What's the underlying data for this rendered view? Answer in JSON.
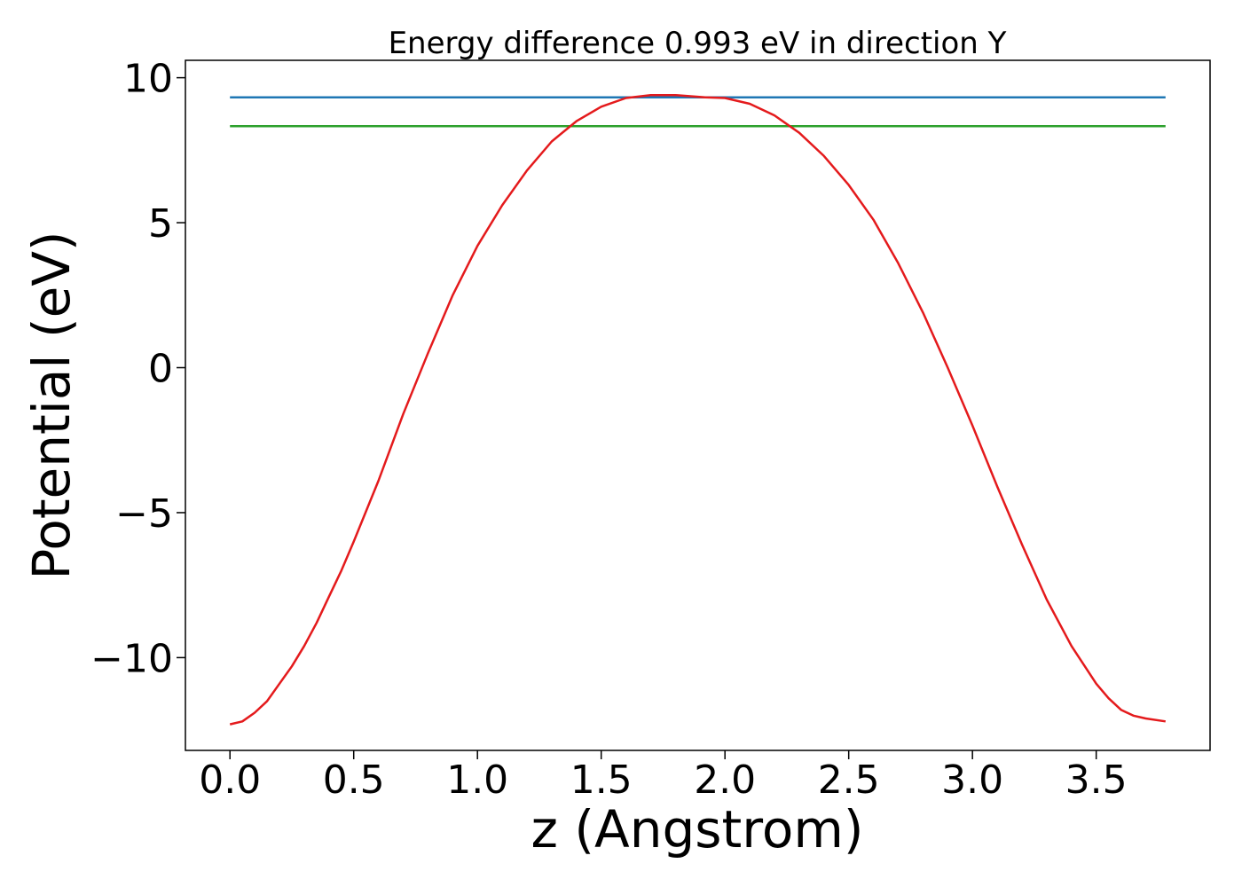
{
  "chart_data": {
    "type": "line",
    "title": "Energy difference 0.993 eV in direction Y",
    "xlabel": "z (Angstrom)",
    "ylabel": "Potential (eV)",
    "xlim": [
      -0.18,
      3.96
    ],
    "ylim": [
      -13.2,
      10.6
    ],
    "xticks": [
      0.0,
      0.5,
      1.0,
      1.5,
      2.0,
      2.5,
      3.0,
      3.5
    ],
    "xtick_labels": [
      "0.0",
      "0.5",
      "1.0",
      "1.5",
      "2.0",
      "2.5",
      "3.0",
      "3.5"
    ],
    "yticks": [
      -10,
      -5,
      0,
      5,
      10
    ],
    "ytick_labels": [
      "−10",
      "−5",
      "0",
      "5",
      "10"
    ],
    "grid": false,
    "legend": "none",
    "series": [
      {
        "color": "#1f77b4",
        "x": [
          0.0,
          3.78
        ],
        "y": [
          9.32,
          9.32
        ]
      },
      {
        "color": "#2ca02c",
        "x": [
          0.0,
          3.78
        ],
        "y": [
          8.33,
          8.33
        ]
      },
      {
        "color": "#e41a1c",
        "x": [
          0.0,
          0.05,
          0.1,
          0.15,
          0.2,
          0.25,
          0.3,
          0.35,
          0.4,
          0.45,
          0.5,
          0.6,
          0.7,
          0.8,
          0.9,
          1.0,
          1.1,
          1.2,
          1.3,
          1.4,
          1.5,
          1.6,
          1.7,
          1.8,
          1.92,
          2.0,
          2.1,
          2.2,
          2.3,
          2.4,
          2.5,
          2.6,
          2.7,
          2.8,
          2.9,
          3.0,
          3.1,
          3.2,
          3.3,
          3.4,
          3.5,
          3.55,
          3.6,
          3.65,
          3.7,
          3.78
        ],
        "y": [
          -12.3,
          -12.2,
          -11.9,
          -11.5,
          -10.9,
          -10.3,
          -9.6,
          -8.8,
          -7.9,
          -7.0,
          -6.0,
          -3.9,
          -1.6,
          0.5,
          2.5,
          4.2,
          5.6,
          6.8,
          7.8,
          8.5,
          9.0,
          9.3,
          9.4,
          9.4,
          9.32,
          9.3,
          9.1,
          8.7,
          8.1,
          7.3,
          6.3,
          5.1,
          3.6,
          1.9,
          0.0,
          -2.0,
          -4.1,
          -6.1,
          -8.0,
          -9.6,
          -10.9,
          -11.4,
          -11.8,
          -12.0,
          -12.1,
          -12.2
        ]
      }
    ]
  }
}
